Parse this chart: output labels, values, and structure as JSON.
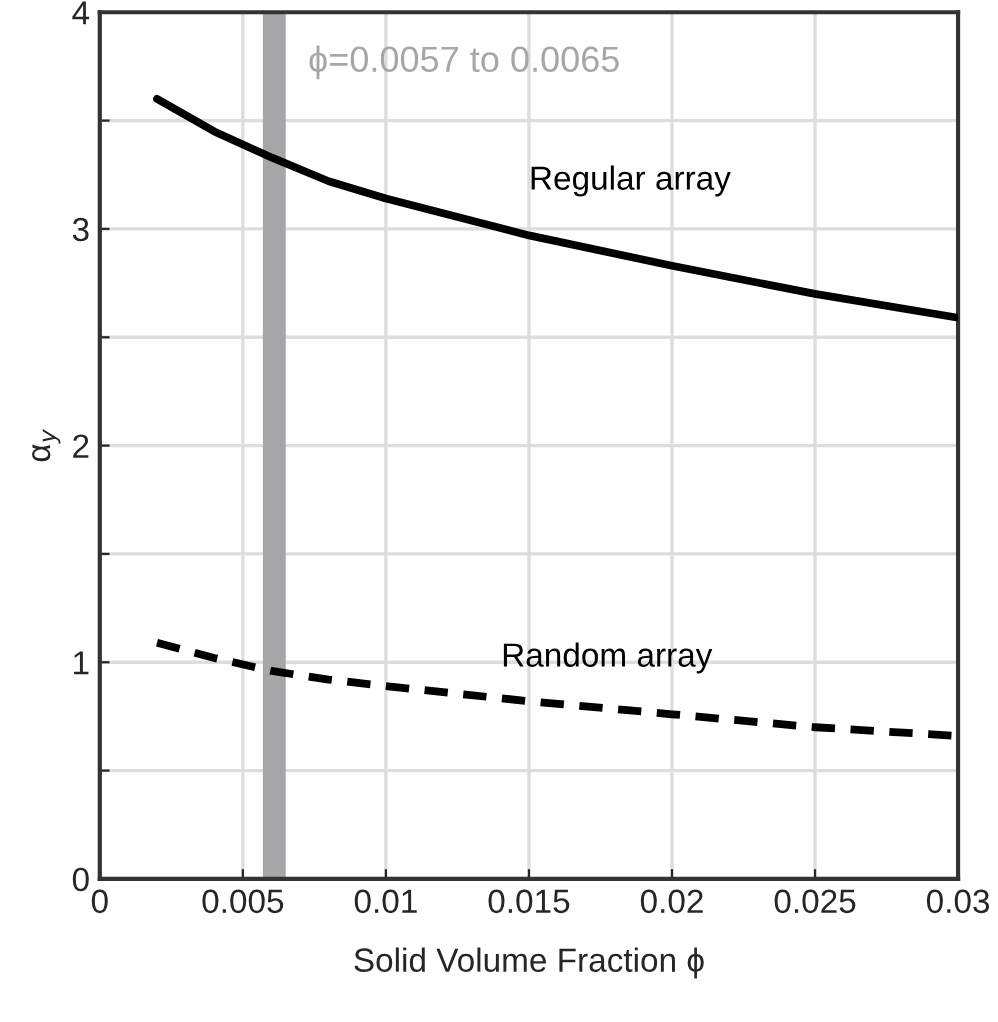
{
  "chart_data": {
    "type": "line",
    "xlabel": "Solid Volume Fraction ϕ",
    "ylabel": "α$_{y}$",
    "x": [
      0.002,
      0.004,
      0.006,
      0.008,
      0.01,
      0.015,
      0.02,
      0.025,
      0.03
    ],
    "series": [
      {
        "name": "Regular array",
        "color": "#000000",
        "line_style": "solid",
        "values": [
          3.6,
          3.45,
          3.33,
          3.22,
          3.14,
          2.97,
          2.83,
          2.7,
          2.59
        ]
      },
      {
        "name": "Random array",
        "color": "#000000",
        "line_style": "dashed",
        "values": [
          1.09,
          1.02,
          0.96,
          0.92,
          0.89,
          0.82,
          0.76,
          0.7,
          0.66
        ]
      }
    ],
    "xlim": [
      0,
      0.03
    ],
    "ylim": [
      0,
      4
    ],
    "xticks": [
      0,
      0.005,
      0.01,
      0.015,
      0.02,
      0.025,
      0.03
    ],
    "yticks": [
      0,
      {
        "value": 0.5,
        "label": null
      },
      1,
      {
        "value": 1.5,
        "label": null
      },
      2,
      {
        "value": 2.5,
        "label": null
      },
      3,
      {
        "value": 3.5,
        "label": null
      },
      4
    ],
    "bands": [
      {
        "axis": "x",
        "from": 0.0057,
        "to": 0.0065,
        "label": "ϕ=0.0057 to 0.0065",
        "color": "#a6a6a8"
      }
    ],
    "grid": true,
    "legend": false
  }
}
